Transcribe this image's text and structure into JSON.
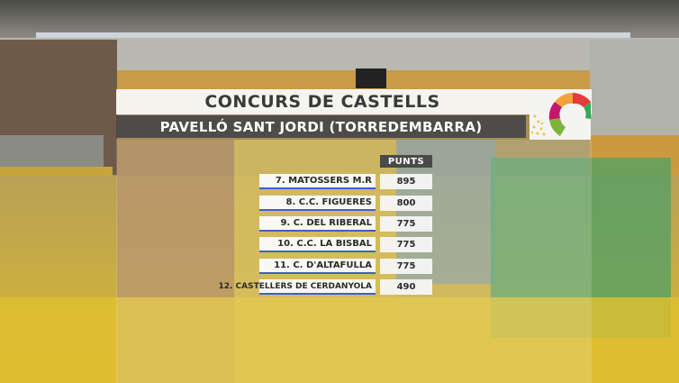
{
  "broadcast": {
    "title": "CONCURS DE CASTELLS",
    "subtitle": "PAVELLÓ SANT JORDI (TORREDEMBARRA)",
    "points_header": "PUNTS",
    "results": [
      {
        "team": "7. MATOSSERS M.R",
        "points": "895"
      },
      {
        "team": "8. C.C. FIGUERES",
        "points": "800"
      },
      {
        "team": "9. C. DEL RIBERAL",
        "points": "775"
      },
      {
        "team": "10. C.C. LA BISBAL",
        "points": "775"
      },
      {
        "team": "11. C. D'ALTAFULLA",
        "points": "775"
      },
      {
        "team": "12. CASTELLERS DE CERDANYOLA",
        "points": "490"
      }
    ]
  },
  "colors": {
    "accent": "#3a63c5",
    "title_bg": "#f8f8f6",
    "subtitle_bg": "#464646",
    "header_bg": "#4a4a4a"
  },
  "icons": {
    "logo": "concurs-castells-logo-icon"
  }
}
